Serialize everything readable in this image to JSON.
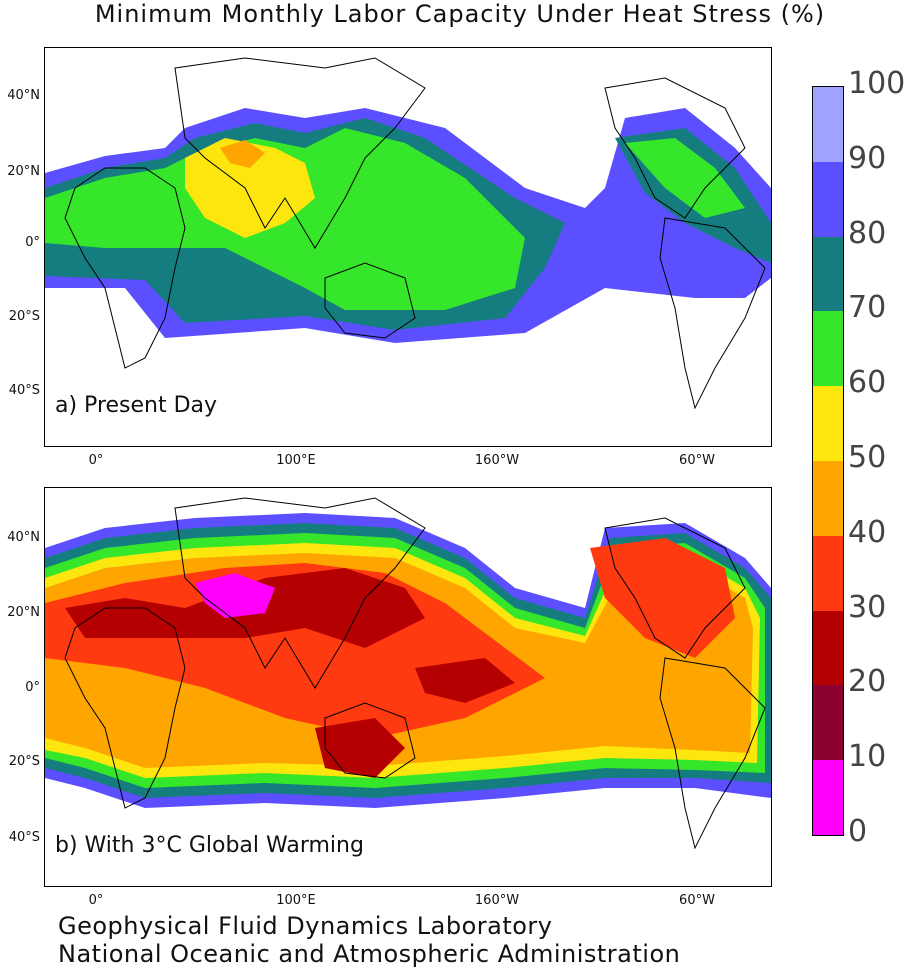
{
  "title": "Minimum Monthly Labor Capacity Under Heat Stress (%)",
  "panels": {
    "a": {
      "label": "a) Present Day"
    },
    "b": {
      "label": "b) With 3°C Global Warming"
    }
  },
  "lat_ticks": [
    "40°N",
    "20°N",
    "0°",
    "20°S",
    "40°S"
  ],
  "lon_ticks": [
    "0°",
    "100°E",
    "160°W",
    "60°W"
  ],
  "colorbar": {
    "labels": [
      "100",
      "90",
      "80",
      "70",
      "60",
      "50",
      "40",
      "30",
      "20",
      "10",
      "0"
    ],
    "colors": [
      "#9fa3ff",
      "#5b4fff",
      "#157d80",
      "#35e62a",
      "#fce60e",
      "#ffa500",
      "#ff3a10",
      "#b40000",
      "#8a0030",
      "#ff00ff"
    ]
  },
  "credit": {
    "line1": "Geophysical Fluid Dynamics Laboratory",
    "line2": "National Oceanic and Atmospheric Administration"
  }
}
